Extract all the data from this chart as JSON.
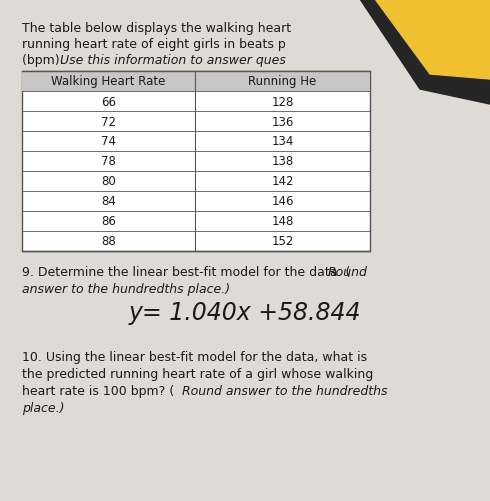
{
  "title_line1": "The table below displays the walking heart ",
  "title_line2": "running heart rate of eight girls in beats p",
  "title_line3": "(bpm). Use this information to answer ques",
  "col1_header": "Walking Heart Rate",
  "col2_header": "Running He",
  "walking": [
    66,
    72,
    74,
    78,
    80,
    84,
    86,
    88
  ],
  "running": [
    128,
    136,
    134,
    138,
    142,
    146,
    148,
    152
  ],
  "q9_answer": "y= 1.040x +58.844",
  "bg_color": "#dedad6",
  "yellow_color": "#f0c030",
  "black_corner": "#252525",
  "text_color": "#1a1a1a",
  "table_header_bg": "#c8c6c4",
  "table_bg": "#ffffff"
}
